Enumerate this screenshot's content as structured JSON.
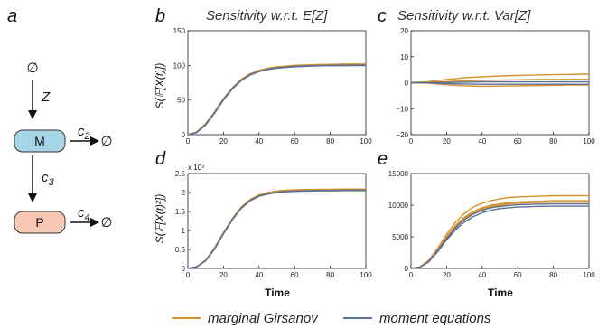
{
  "figure": {
    "panel_labels": {
      "a": "a",
      "b": "b",
      "c": "c",
      "d": "d",
      "e": "e"
    },
    "titles": {
      "b": "Sensitivity w.r.t. E[Z]",
      "c": "Sensitivity w.r.t. Var[Z]"
    },
    "ylabels": {
      "b": "S(𝔼[X(t)])",
      "d": "S(𝔼[X(t)²])"
    },
    "xlabel": "Time",
    "multiplier": "x 10⁴",
    "legend": {
      "girsanov": "marginal Girsanov",
      "moment": "moment equations"
    }
  },
  "diagram": {
    "source_symbol": "∅",
    "input_rate": "Z",
    "node_m": "M",
    "node_p": "P",
    "rate_m_decay": "c",
    "rate_m_decay_sub": "2",
    "rate_translation": "c",
    "rate_translation_sub": "3",
    "rate_p_decay": "c",
    "rate_p_decay_sub": "4",
    "sink_m": "∅",
    "sink_p": "∅",
    "colors": {
      "m_fill": "#a7d6e8",
      "p_fill": "#f8c8b4"
    }
  },
  "colors": {
    "girsanov": "#d4912c",
    "moment": "#5b6f93"
  },
  "chart_data": [
    {
      "id": "b",
      "type": "line",
      "title": "Sensitivity w.r.t. E[Z]",
      "xlabel": "",
      "ylabel": "S(𝔼[X(t)])",
      "xlim": [
        0,
        100
      ],
      "ylim": [
        0,
        150
      ],
      "xticks": [
        "0",
        "20",
        "40",
        "60",
        "80",
        "100"
      ],
      "yticks": [
        "0",
        "50",
        "100",
        "150"
      ],
      "ytick_values": [
        0,
        50,
        100,
        150
      ],
      "x": [
        0,
        5,
        10,
        15,
        20,
        25,
        30,
        35,
        40,
        45,
        50,
        55,
        60,
        70,
        80,
        90,
        100
      ],
      "series": [
        {
          "name": "marginal Girsanov",
          "values": [
            0,
            4,
            16,
            33,
            52,
            68,
            80,
            88,
            93,
            96,
            98,
            99,
            100,
            101,
            101.5,
            102,
            102
          ]
        },
        {
          "name": "marginal Girsanov",
          "values": [
            0,
            3.5,
            15,
            32,
            51,
            67,
            79,
            87,
            92,
            95,
            97,
            98,
            99,
            100,
            100.5,
            101,
            101
          ]
        },
        {
          "name": "moment equations",
          "values": [
            0,
            3,
            14,
            31,
            50,
            66,
            78,
            86,
            91,
            94,
            96,
            97,
            98,
            99,
            99.5,
            99.7,
            99.8
          ]
        },
        {
          "name": "moment equations",
          "values": [
            0,
            3.2,
            14.5,
            31.5,
            50.5,
            66.5,
            78.5,
            86.5,
            91.5,
            94.5,
            96.5,
            97.5,
            98.5,
            99.5,
            100,
            100.2,
            100.3
          ]
        }
      ]
    },
    {
      "id": "c",
      "type": "line",
      "title": "Sensitivity w.r.t. Var[Z]",
      "xlabel": "",
      "ylabel": "",
      "xlim": [
        0,
        100
      ],
      "ylim": [
        -20,
        20
      ],
      "xticks": [
        "0",
        "20",
        "40",
        "60",
        "80",
        "100"
      ],
      "yticks": [
        "−20",
        "−10",
        "0",
        "10",
        "20"
      ],
      "ytick_values": [
        -20,
        -10,
        0,
        10,
        20
      ],
      "x": [
        0,
        10,
        20,
        30,
        40,
        50,
        60,
        70,
        80,
        90,
        100
      ],
      "series": [
        {
          "name": "marginal Girsanov",
          "values": [
            0,
            0.4,
            1.2,
            1.9,
            2.3,
            2.6,
            2.8,
            3.0,
            3.1,
            3.2,
            3.3
          ]
        },
        {
          "name": "marginal Girsanov",
          "values": [
            0,
            0.1,
            0.4,
            0.7,
            0.9,
            1.0,
            1.1,
            1.2,
            1.2,
            1.3,
            1.3
          ]
        },
        {
          "name": "marginal Girsanov",
          "values": [
            0,
            -0.2,
            -0.8,
            -1.2,
            -1.4,
            -1.3,
            -1.2,
            -1.1,
            -1.0,
            -0.9,
            -0.9
          ]
        },
        {
          "name": "moment equations",
          "values": [
            0,
            0,
            0.1,
            0.2,
            0.3,
            0.3,
            0.3,
            0.3,
            0.3,
            0.3,
            0.3
          ]
        },
        {
          "name": "moment equations",
          "values": [
            0,
            -0.1,
            -0.3,
            -0.5,
            -0.6,
            -0.6,
            -0.6,
            -0.6,
            -0.6,
            -0.6,
            -0.6
          ]
        }
      ]
    },
    {
      "id": "d",
      "type": "line",
      "title": "",
      "xlabel": "Time",
      "ylabel": "S(𝔼[X(t)²])",
      "xlim": [
        0,
        100
      ],
      "ylim": [
        0,
        25000
      ],
      "multiplier": "x 10⁴",
      "xticks": [
        "0",
        "20",
        "40",
        "60",
        "80",
        "100"
      ],
      "yticks": [
        "0",
        "0.5",
        "1",
        "1.5",
        "2",
        "2.5"
      ],
      "ytick_values": [
        0,
        5000,
        10000,
        15000,
        20000,
        25000
      ],
      "x": [
        0,
        5,
        10,
        15,
        20,
        25,
        30,
        35,
        40,
        45,
        50,
        55,
        60,
        70,
        80,
        90,
        100
      ],
      "series": [
        {
          "name": "marginal Girsanov",
          "values": [
            0,
            500,
            2200,
            5500,
            9500,
            13200,
            16200,
            18200,
            19400,
            20000,
            20400,
            20600,
            20700,
            20800,
            20850,
            20900,
            20900
          ]
        },
        {
          "name": "marginal Girsanov",
          "values": [
            0,
            450,
            2100,
            5300,
            9300,
            13000,
            16000,
            18000,
            19200,
            19800,
            20200,
            20400,
            20500,
            20600,
            20650,
            20700,
            20700
          ]
        },
        {
          "name": "moment equations",
          "values": [
            0,
            400,
            2000,
            5100,
            9100,
            12800,
            15800,
            17800,
            19000,
            19600,
            20000,
            20200,
            20300,
            20400,
            20450,
            20500,
            20500
          ]
        },
        {
          "name": "moment equations",
          "values": [
            0,
            420,
            2050,
            5200,
            9200,
            12900,
            15900,
            17900,
            19100,
            19700,
            20100,
            20300,
            20400,
            20500,
            20550,
            20600,
            20600
          ]
        }
      ]
    },
    {
      "id": "e",
      "type": "line",
      "title": "",
      "xlabel": "Time",
      "ylabel": "",
      "xlim": [
        0,
        100
      ],
      "ylim": [
        0,
        15000
      ],
      "xticks": [
        "0",
        "20",
        "40",
        "60",
        "80",
        "100"
      ],
      "yticks": [
        "0",
        "5000",
        "10000",
        "15000"
      ],
      "ytick_values": [
        0,
        5000,
        10000,
        15000
      ],
      "x": [
        0,
        5,
        10,
        15,
        20,
        25,
        30,
        35,
        40,
        45,
        50,
        55,
        60,
        70,
        80,
        90,
        100
      ],
      "series": [
        {
          "name": "marginal Girsanov",
          "values": [
            0,
            250,
            1300,
            3200,
            5400,
            7300,
            8700,
            9700,
            10300,
            10700,
            11000,
            11200,
            11300,
            11400,
            11500,
            11500,
            11500
          ]
        },
        {
          "name": "marginal Girsanov",
          "values": [
            0,
            220,
            1200,
            3000,
            5000,
            6800,
            8100,
            9000,
            9600,
            10000,
            10200,
            10400,
            10500,
            10600,
            10700,
            10700,
            10700
          ]
        },
        {
          "name": "marginal Girsanov",
          "values": [
            0,
            210,
            1150,
            2900,
            4850,
            6600,
            7900,
            8800,
            9400,
            9800,
            10000,
            10200,
            10300,
            10400,
            10500,
            10500,
            10500
          ]
        },
        {
          "name": "moment equations",
          "values": [
            0,
            200,
            1100,
            2800,
            4700,
            6400,
            7700,
            8600,
            9200,
            9600,
            9800,
            9950,
            10050,
            10150,
            10200,
            10200,
            10200
          ]
        },
        {
          "name": "moment equations",
          "values": [
            0,
            190,
            1050,
            2650,
            4500,
            6100,
            7300,
            8200,
            8800,
            9200,
            9450,
            9600,
            9700,
            9800,
            9850,
            9850,
            9850
          ]
        }
      ]
    }
  ]
}
